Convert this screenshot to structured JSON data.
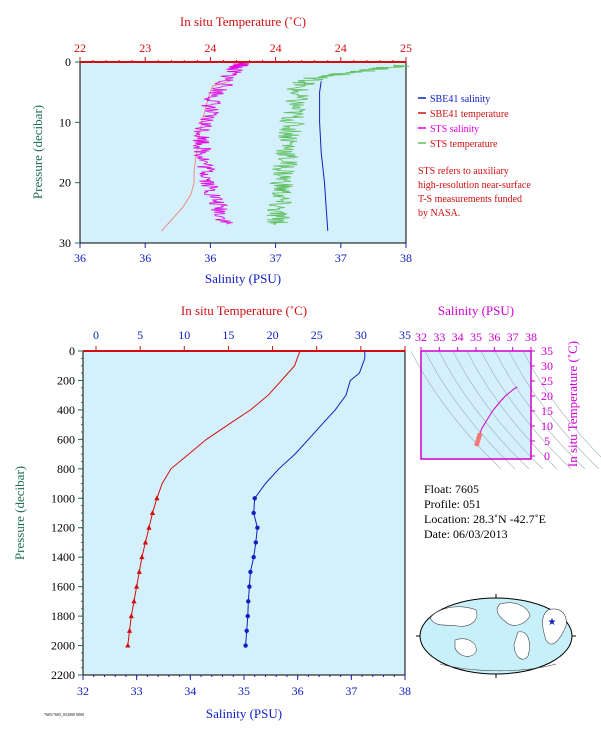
{
  "colors": {
    "salinity": "#1020c0",
    "temperature": "#d01010",
    "sts_salinity": "#e000e0",
    "sts_temperature": "#60c060",
    "pressure": "#207050",
    "bg": "#d4f0fa"
  },
  "top_chart": {
    "top_axis_label": "In situ Temperature (˚C)",
    "bottom_axis_label": "Salinity (PSU)",
    "y_axis_label": "Pressure (decibar)",
    "top_ticks": [
      "22",
      "23",
      "24",
      "24",
      "24",
      "25"
    ],
    "bottom_ticks": [
      "36",
      "36",
      "36",
      "37",
      "37",
      "38"
    ],
    "y_ticks": [
      "0",
      "10",
      "20",
      "30"
    ],
    "legend": [
      {
        "label": "SBE41 salinity",
        "color": "#1020c0"
      },
      {
        "label": "SBE41 temperature",
        "color": "#d01010"
      },
      {
        "label": "STS salinity",
        "color": "#e000e0"
      },
      {
        "label": "STS temperature",
        "color": "#60c060"
      }
    ],
    "note": [
      "STS refers to auxiliary",
      "high-resolution near-surface",
      "T-S measurements funded",
      "by NASA."
    ]
  },
  "main_chart": {
    "top_axis_label": "In situ Temperature (˚C)",
    "bottom_axis_label": "Salinity (PSU)",
    "y_axis_label": "Pressure (decibar)",
    "top_ticks": [
      "0",
      "5",
      "10",
      "15",
      "20",
      "25",
      "30",
      "35"
    ],
    "bottom_ticks": [
      "32",
      "33",
      "34",
      "35",
      "36",
      "37",
      "38"
    ],
    "y_ticks": [
      "0",
      "200",
      "400",
      "600",
      "800",
      "1000",
      "1200",
      "1400",
      "1600",
      "1800",
      "2000",
      "2200"
    ]
  },
  "ts_chart": {
    "top_axis_label": "Salinity (PSU)",
    "right_axis_label": "In situ Temperature (˚C)",
    "top_ticks": [
      "32",
      "33",
      "34",
      "35",
      "36",
      "37",
      "38"
    ],
    "right_ticks": [
      "0",
      "5",
      "10",
      "15",
      "20",
      "25",
      "30",
      "35"
    ]
  },
  "info": {
    "float": "Float:  7605",
    "profile": "Profile:  051",
    "location": "Location:  28.3˚N  -42.7˚E",
    "date": "Date:  06/03/2013"
  },
  "footer": "7605/7605_052000 0000",
  "chart_data": [
    {
      "type": "line",
      "title": "",
      "xlabel": "Salinity (PSU)",
      "x2label": "In situ Temperature (˚C)",
      "ylabel": "Pressure (decibar)",
      "xlim": [
        36,
        38
      ],
      "x2lim": [
        22,
        25
      ],
      "ylim": [
        30,
        0
      ],
      "series": [
        {
          "name": "SBE41 salinity",
          "axis": "salinity",
          "points": [
            [
              37.48,
              3.2
            ],
            [
              37.47,
              5
            ],
            [
              37.47,
              10
            ],
            [
              37.48,
              15
            ],
            [
              37.5,
              20
            ],
            [
              37.51,
              24
            ],
            [
              37.52,
              28
            ]
          ]
        },
        {
          "name": "SBE41 temperature",
          "axis": "temperature",
          "points": [
            [
              23.38,
              3.2
            ],
            [
              23.22,
              4
            ],
            [
              23.18,
              6
            ],
            [
              23.15,
              8
            ],
            [
              23.12,
              10
            ],
            [
              23.08,
              14
            ],
            [
              23.05,
              18
            ],
            [
              23.05,
              20
            ],
            [
              23.02,
              22
            ],
            [
              22.95,
              24
            ],
            [
              22.85,
              26
            ],
            [
              22.75,
              28
            ]
          ]
        },
        {
          "name": "STS salinity",
          "axis": "salinity",
          "points": [
            [
              37.0,
              0.2
            ],
            [
              36.95,
              1
            ],
            [
              36.9,
              3
            ],
            [
              36.82,
              6
            ],
            [
              36.78,
              9
            ],
            [
              36.75,
              12
            ],
            [
              36.75,
              15
            ],
            [
              36.78,
              18
            ],
            [
              36.8,
              21
            ],
            [
              36.85,
              24
            ],
            [
              36.9,
              27
            ]
          ]
        },
        {
          "name": "STS temperature",
          "axis": "temperature",
          "points": [
            [
              25.0,
              0.5
            ],
            [
              24.6,
              1.5
            ],
            [
              24.2,
              2.5
            ],
            [
              24.0,
              4
            ],
            [
              23.98,
              7
            ],
            [
              23.95,
              10
            ],
            [
              23.93,
              13
            ],
            [
              23.9,
              16
            ],
            [
              23.87,
              19
            ],
            [
              23.85,
              22
            ],
            [
              23.8,
              25
            ],
            [
              23.85,
              27
            ]
          ]
        }
      ]
    },
    {
      "type": "line",
      "title": "",
      "xlabel": "Salinity (PSU)",
      "x2label": "In situ Temperature (˚C)",
      "ylabel": "Pressure (decibar)",
      "xlim": [
        32,
        38
      ],
      "x2lim": [
        0,
        35
      ],
      "ylim": [
        2200,
        0
      ],
      "series": [
        {
          "name": "Salinity",
          "axis": "salinity",
          "points": [
            [
              37.25,
              0
            ],
            [
              37.25,
              50
            ],
            [
              37.2,
              100
            ],
            [
              37.15,
              150
            ],
            [
              36.98,
              200
            ],
            [
              36.9,
              300
            ],
            [
              36.7,
              400
            ],
            [
              36.45,
              500
            ],
            [
              36.2,
              600
            ],
            [
              35.95,
              700
            ],
            [
              35.65,
              800
            ],
            [
              35.4,
              900
            ],
            [
              35.2,
              1000
            ],
            [
              35.18,
              1100
            ],
            [
              35.25,
              1200
            ],
            [
              35.22,
              1300
            ],
            [
              35.18,
              1400
            ],
            [
              35.12,
              1500
            ],
            [
              35.1,
              1600
            ],
            [
              35.08,
              1700
            ],
            [
              35.07,
              1800
            ],
            [
              35.05,
              1900
            ],
            [
              35.03,
              2000
            ]
          ]
        },
        {
          "name": "Temperature",
          "axis": "temperature",
          "points": [
            [
              23.1,
              0
            ],
            [
              22.5,
              100
            ],
            [
              21.0,
              200
            ],
            [
              19.5,
              300
            ],
            [
              17.5,
              400
            ],
            [
              15.0,
              500
            ],
            [
              12.5,
              600
            ],
            [
              10.5,
              700
            ],
            [
              8.5,
              800
            ],
            [
              7.5,
              900
            ],
            [
              6.9,
              1000
            ],
            [
              6.4,
              1100
            ],
            [
              6.0,
              1200
            ],
            [
              5.6,
              1300
            ],
            [
              5.2,
              1400
            ],
            [
              4.9,
              1500
            ],
            [
              4.6,
              1600
            ],
            [
              4.3,
              1700
            ],
            [
              4.0,
              1800
            ],
            [
              3.8,
              1900
            ],
            [
              3.6,
              2000
            ]
          ]
        }
      ]
    },
    {
      "type": "scatter",
      "title": "",
      "xlabel": "Salinity (PSU)",
      "ylabel": "In situ Temperature (˚C)",
      "xlim": [
        32,
        38
      ],
      "ylim": [
        -1,
        35
      ],
      "series": [
        {
          "name": "T-S",
          "points": [
            [
              35.05,
              4
            ],
            [
              35.1,
              5
            ],
            [
              35.15,
              6
            ],
            [
              35.2,
              7
            ],
            [
              35.3,
              9
            ],
            [
              35.6,
              12
            ],
            [
              35.9,
              15
            ],
            [
              36.3,
              18
            ],
            [
              36.6,
              20
            ],
            [
              36.9,
              21.5
            ],
            [
              37.1,
              22.5
            ],
            [
              37.25,
              23
            ]
          ]
        }
      ]
    }
  ]
}
